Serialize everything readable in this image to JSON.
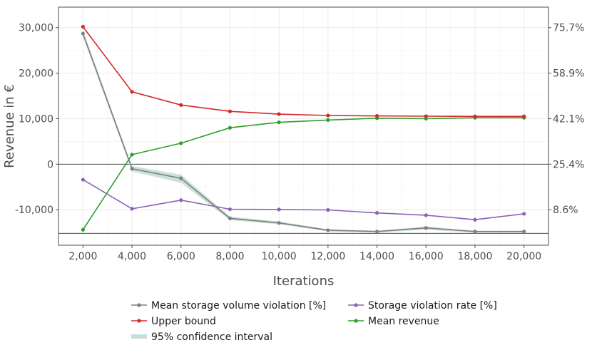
{
  "chart_data": {
    "type": "line",
    "xlabel": "Iterations",
    "ylabel": "Revenue in €",
    "x": [
      2000,
      4000,
      6000,
      8000,
      10000,
      12000,
      14000,
      16000,
      18000,
      20000
    ],
    "x_tick_labels": [
      "2,000",
      "4,000",
      "6,000",
      "8,000",
      "10,000",
      "12,000",
      "14,000",
      "16,000",
      "18,000",
      "20,000"
    ],
    "xlim": [
      1000,
      21000
    ],
    "ylim": [
      -17800,
      34500
    ],
    "y_ticks": [
      30000,
      20000,
      10000,
      0,
      -10000
    ],
    "y_tick_labels": [
      "30,000",
      "20,000",
      "10,000",
      "0",
      "-10,000"
    ],
    "right_axis": {
      "unit": "%",
      "ticks_at_left_value": [
        30000,
        20000,
        10000,
        0,
        -10000
      ],
      "tick_labels": [
        "75.7%",
        "58.9%",
        "42.1%",
        "25.4%",
        "8.6%"
      ]
    },
    "reference_lines_y": [
      0,
      -15200
    ],
    "grid": true,
    "legend_position": "bottom",
    "series": [
      {
        "name": "Mean storage volume violation [%]",
        "color": "#7f7f7f",
        "values": [
          28700,
          -1000,
          -3100,
          -11900,
          -12900,
          -14500,
          -14800,
          -14000,
          -14800,
          -14800
        ],
        "ci_low": [
          28000,
          -1600,
          -4100,
          -12300,
          -13200,
          -14800,
          -15000,
          -14400,
          -15000,
          -15000
        ],
        "ci_high": [
          29400,
          -400,
          -2300,
          -11500,
          -12600,
          -14300,
          -14600,
          -13700,
          -14600,
          -14600
        ]
      },
      {
        "name": "Storage violation rate [%]",
        "color": "#8c62b4",
        "values": [
          -3400,
          -9800,
          -7900,
          -9900,
          -9950,
          -10050,
          -10700,
          -11200,
          -12200,
          -10900
        ]
      },
      {
        "name": "Upper bound",
        "color": "#d62728",
        "values": [
          30200,
          15900,
          13000,
          11600,
          11000,
          10700,
          10600,
          10550,
          10500,
          10500
        ]
      },
      {
        "name": "Mean revenue",
        "color": "#2ca02c",
        "values": [
          -14400,
          2100,
          4600,
          8000,
          9200,
          9700,
          10100,
          10000,
          10200,
          10200
        ]
      }
    ],
    "confidence_band": {
      "name": "95% confidence interval",
      "color": "#c5dfd5"
    }
  }
}
